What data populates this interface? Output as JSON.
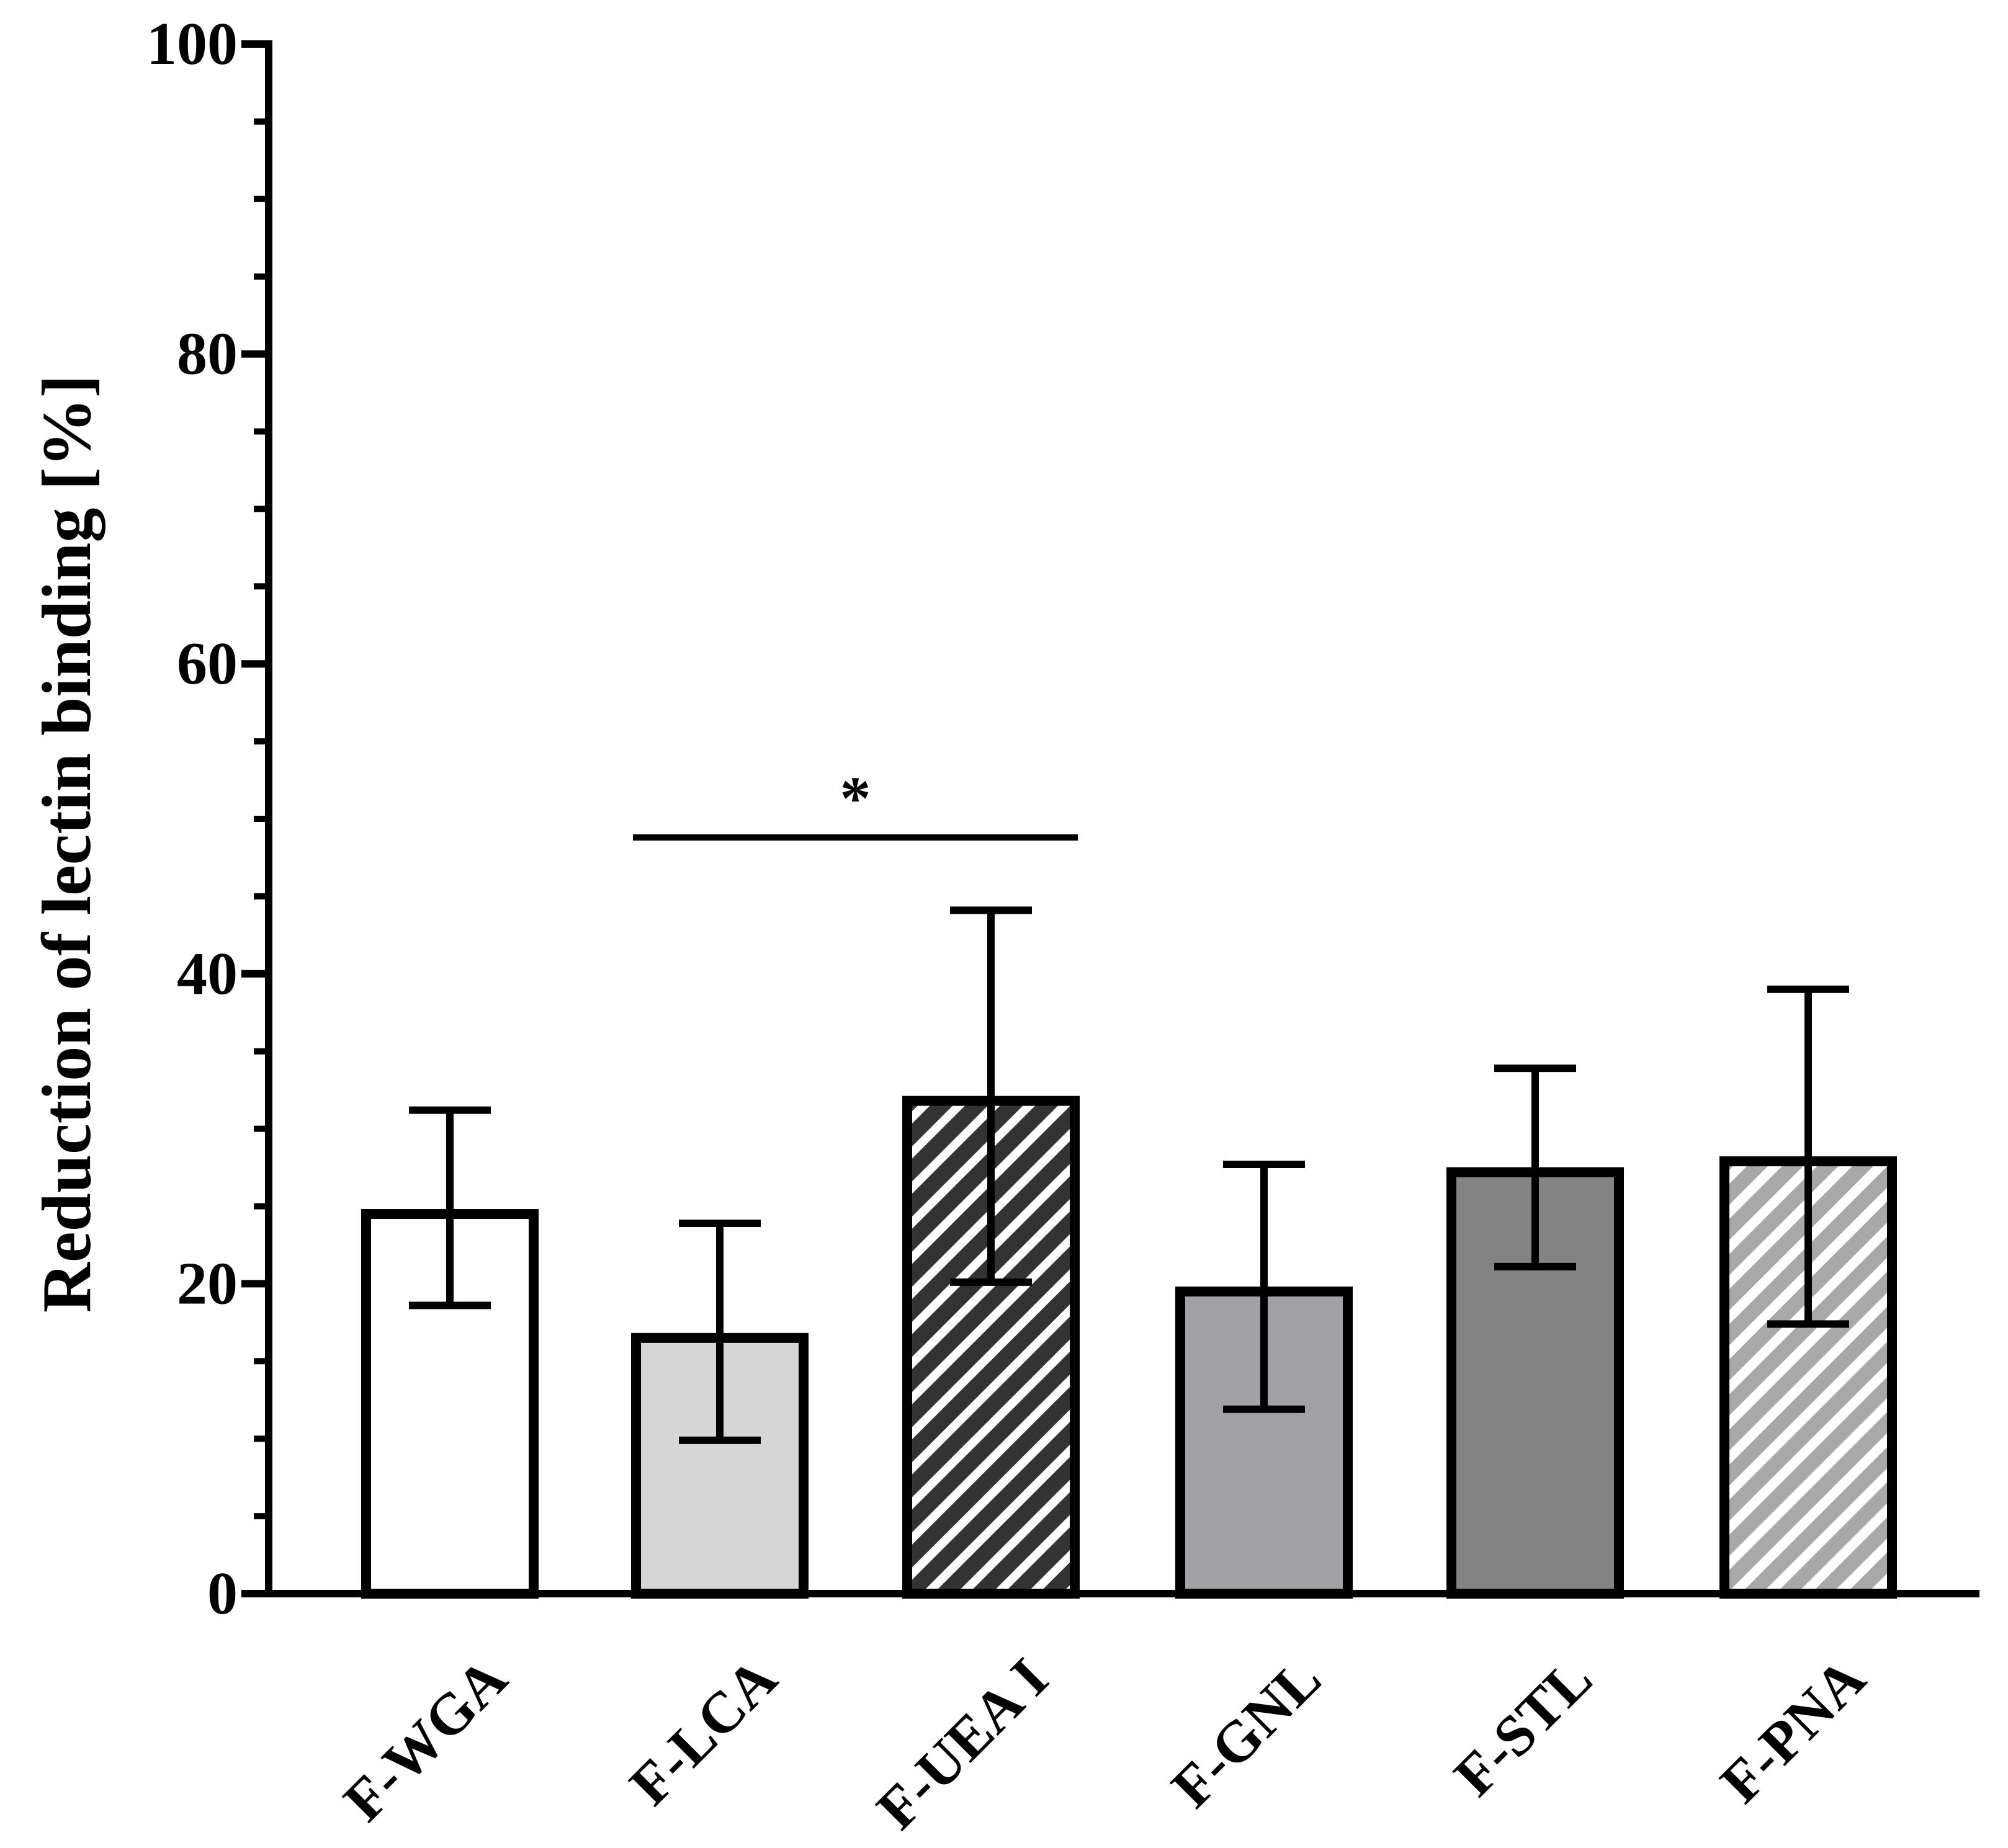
{
  "chart_data": {
    "type": "bar",
    "title": "",
    "xlabel": "",
    "ylabel": "Reduction of lectin binding [%]",
    "ylim": [
      0,
      100
    ],
    "yticks": [
      0,
      20,
      40,
      60,
      80,
      100
    ],
    "ytick_labels": [
      "0",
      "20",
      "40",
      "60",
      "80",
      "100"
    ],
    "minor_tick_step": 5,
    "grid": false,
    "legend": "none",
    "categories": [
      "F-WGA",
      "F-LCA",
      "F-UEA I",
      "F-GNL",
      "F-STL",
      "F-PNA"
    ],
    "values": [
      24.5,
      16.5,
      31.8,
      19.5,
      27.2,
      27.9
    ],
    "error_high": [
      31.2,
      23.9,
      44.1,
      27.7,
      33.9,
      39.0
    ],
    "error_low": [
      18.6,
      9.9,
      20.1,
      11.9,
      21.1,
      17.4
    ],
    "fill_colors": [
      "#ffffff",
      "#d6d6d6",
      "#333333",
      "#a2a2a6",
      "#838383",
      "#a8a8a8"
    ],
    "patterns": [
      "none",
      "none",
      "hatch-dark",
      "none",
      "none",
      "hatch-light"
    ],
    "significance": {
      "from": "F-LCA",
      "to": "F-UEA I",
      "level": 48.8,
      "label": "*"
    }
  }
}
